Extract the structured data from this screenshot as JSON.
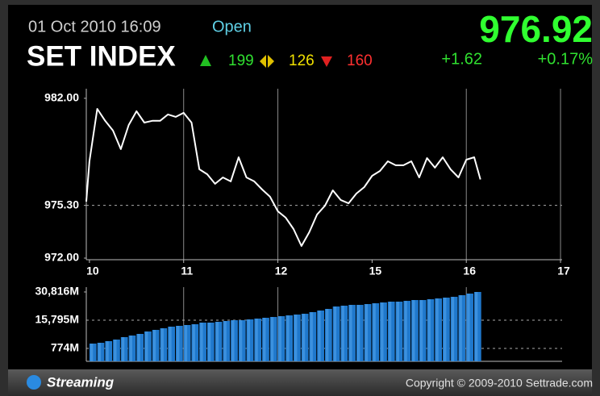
{
  "header": {
    "date": "01 Oct 2010 16:09",
    "status": "Open",
    "name": "SET INDEX",
    "advances": 199,
    "unchanged": 126,
    "declines": 160,
    "last": "976.92",
    "change": "+1.62",
    "percent_change": "+0.17%"
  },
  "chart_data": [
    {
      "type": "line",
      "color": "#ffffff",
      "x": [
        -2,
        0,
        5,
        10,
        15,
        20,
        25,
        30,
        35,
        40,
        45,
        50,
        55,
        60,
        65,
        70,
        75,
        80,
        85,
        90,
        95,
        100,
        105,
        110,
        115,
        120,
        125,
        130,
        135,
        140,
        145,
        150,
        155,
        160,
        165,
        170,
        175,
        180,
        185,
        190,
        195,
        200,
        205,
        210,
        215,
        220,
        225,
        230,
        235,
        240,
        245,
        249
      ],
      "values": [
        975.54,
        978.06,
        981.34,
        980.59,
        979.98,
        978.82,
        980.33,
        981.19,
        980.48,
        980.59,
        980.59,
        980.99,
        980.84,
        981.09,
        980.48,
        977.56,
        977.25,
        976.65,
        977.05,
        976.8,
        978.31,
        977.05,
        976.8,
        976.29,
        975.84,
        974.93,
        974.53,
        973.82,
        972.76,
        973.62,
        974.73,
        975.28,
        976.24,
        975.64,
        975.43,
        976.04,
        976.44,
        977.15,
        977.45,
        978.06,
        977.81,
        977.81,
        978.06,
        977.05,
        978.26,
        977.66,
        978.31,
        977.56,
        977.05,
        978.16,
        978.31,
        976.92
      ],
      "xlim": [
        -2,
        301
      ],
      "xticks": [
        {
          "value": 0,
          "label": "10"
        },
        {
          "value": 60,
          "label": "11"
        },
        {
          "value": 120,
          "label": "12"
        },
        {
          "value": 180,
          "label": "15"
        },
        {
          "value": 240,
          "label": "16"
        },
        {
          "value": 300,
          "label": "17"
        }
      ],
      "xgrid": [
        60,
        120,
        240
      ],
      "ylim": [
        971.9,
        982.6
      ],
      "yticks": [
        {
          "value": 972,
          "label": "972.00"
        },
        {
          "value": 975.3,
          "label": "975.30"
        },
        {
          "value": 982,
          "label": "982.00"
        }
      ],
      "tick_colors": [
        "#ffffff",
        "#f0e000",
        "#ffffff"
      ],
      "reference": 975.3
    },
    {
      "type": "bar",
      "color": "#1f78cc",
      "x": [
        0,
        5,
        10,
        15,
        20,
        25,
        30,
        35,
        40,
        45,
        50,
        55,
        60,
        65,
        70,
        75,
        80,
        85,
        90,
        95,
        100,
        105,
        110,
        115,
        120,
        125,
        130,
        135,
        140,
        145,
        150,
        155,
        160,
        165,
        170,
        175,
        180,
        185,
        190,
        195,
        200,
        205,
        210,
        215,
        220,
        225,
        230,
        235,
        240,
        245
      ],
      "bar_width": 5,
      "values": [
        3350,
        3780,
        4640,
        5490,
        6780,
        7640,
        8500,
        9780,
        10640,
        11500,
        12360,
        12790,
        13220,
        13640,
        14500,
        14500,
        14930,
        15360,
        15790,
        15790,
        16220,
        16650,
        17080,
        17500,
        17930,
        18360,
        18790,
        19220,
        20080,
        20940,
        21800,
        23080,
        23510,
        23940,
        23940,
        24370,
        24800,
        25230,
        25660,
        25660,
        26080,
        26510,
        26510,
        26940,
        27370,
        27800,
        28230,
        29090,
        29950,
        30816
      ],
      "xlim": [
        -2,
        301
      ],
      "ylim": [
        -6090,
        33390
      ],
      "yticks": [
        {
          "value": 774,
          "label": "774M"
        },
        {
          "value": 15795,
          "label": "15,795M"
        },
        {
          "value": 30816,
          "label": "30,816M"
        }
      ],
      "tick_colors": [
        "#f0e000",
        "#f0e000",
        "#ffffff"
      ]
    }
  ],
  "footer": {
    "brand": "Streaming",
    "copyright": "Copyright © 2009-2010 Settrade.com"
  }
}
